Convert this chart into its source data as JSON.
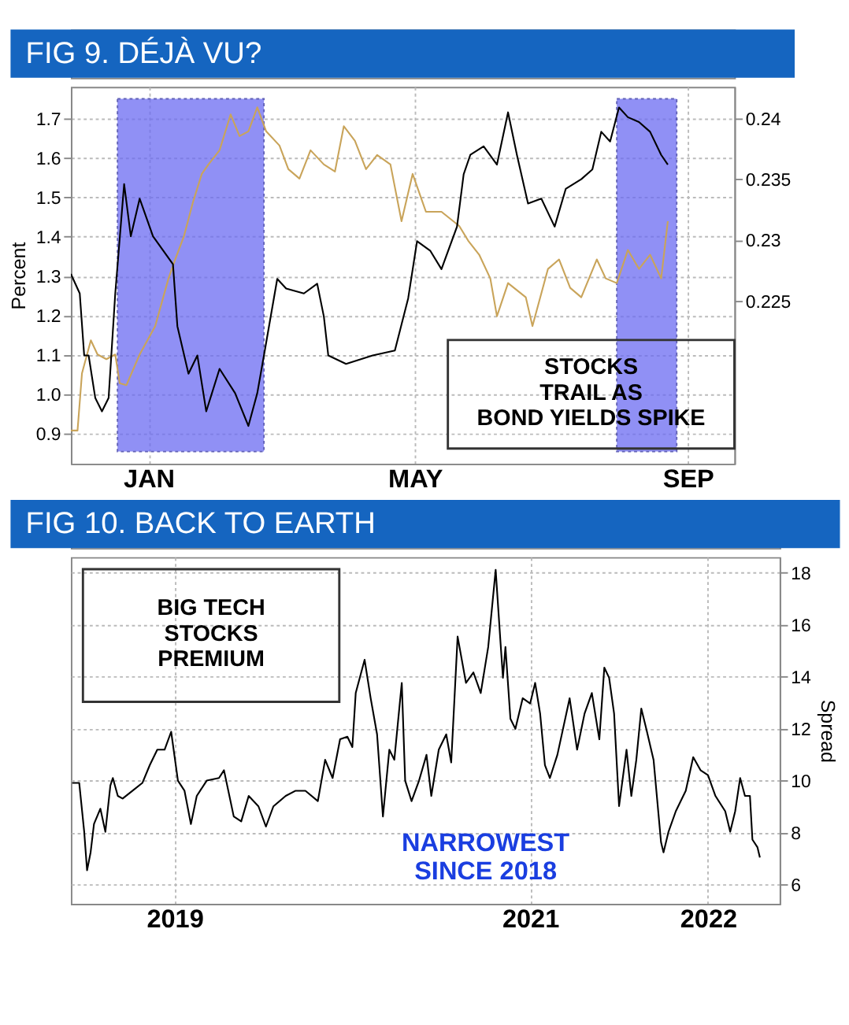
{
  "chart_data": [
    {
      "type": "line",
      "title": "FIG 9. DÉJÀ VU?",
      "ylabel": "Percent",
      "grid": true,
      "xlim": [
        "2020-11-27",
        "2021-09-22"
      ],
      "xticks": [
        {
          "value": "2021-01-01",
          "label": "JAN"
        },
        {
          "value": "2021-05-01",
          "label": "MAY"
        },
        {
          "value": "2021-09-01",
          "label": "SEP"
        }
      ],
      "ylim": [
        0.824,
        1.78
      ],
      "yticks": [
        0.9,
        {
          "value": 1,
          "label": "1.0"
        },
        1.1,
        1.2,
        1.3,
        1.4,
        1.5,
        1.6,
        1.7
      ],
      "y2lim": [
        0.2116,
        0.2426
      ],
      "y2ticks": [
        0.225,
        0.23,
        0.235,
        0.24
      ],
      "bands": [
        {
          "axis": "x",
          "from": "2020-12-18",
          "to": "2021-02-22",
          "color": "#6b6bf2"
        },
        {
          "axis": "x",
          "from": "2021-07-31",
          "to": "2021-08-27",
          "color": "#6b6bf2"
        }
      ],
      "series": [
        {
          "color": "#c9a45a",
          "x": [
            "2020-11-27",
            "2020-11-30",
            "2020-12-02",
            "2020-12-06",
            "2020-12-09",
            "2020-12-13",
            "2020-12-17",
            "2020-12-19",
            "2020-12-22",
            "2020-12-28",
            "2021-01-04",
            "2021-01-10",
            "2021-01-13",
            "2021-01-17",
            "2021-01-21",
            "2021-01-25",
            "2021-01-28",
            "2021-02-02",
            "2021-02-07",
            "2021-02-11",
            "2021-02-15",
            "2021-02-19",
            "2021-02-23",
            "2021-03-01",
            "2021-03-05",
            "2021-03-10",
            "2021-03-15",
            "2021-03-21",
            "2021-03-26",
            "2021-03-30",
            "2021-04-04",
            "2021-04-09",
            "2021-04-14",
            "2021-04-20",
            "2021-04-25",
            "2021-04-30",
            "2021-05-06",
            "2021-05-13",
            "2021-05-21",
            "2021-05-25",
            "2021-05-30",
            "2021-06-04",
            "2021-06-07",
            "2021-06-12",
            "2021-06-20",
            "2021-06-23",
            "2021-06-30",
            "2021-07-05",
            "2021-07-10",
            "2021-07-15",
            "2021-07-22",
            "2021-07-26",
            "2021-07-31",
            "2021-08-05",
            "2021-08-10",
            "2021-08-15",
            "2021-08-20",
            "2021-08-23"
          ],
          "values": [
            0.908,
            0.908,
            1.053,
            1.137,
            1.101,
            1.089,
            1.101,
            1.028,
            1.023,
            1.101,
            1.173,
            1.294,
            1.342,
            1.402,
            1.487,
            1.559,
            1.583,
            1.619,
            1.71,
            1.655,
            1.667,
            1.728,
            1.667,
            1.631,
            1.571,
            1.547,
            1.619,
            1.583,
            1.565,
            1.68,
            1.643,
            1.571,
            1.607,
            1.583,
            1.439,
            1.559,
            1.463,
            1.463,
            1.427,
            1.39,
            1.354,
            1.294,
            1.198,
            1.282,
            1.246,
            1.173,
            1.318,
            1.342,
            1.27,
            1.246,
            1.342,
            1.294,
            1.282,
            1.366,
            1.318,
            1.354,
            1.294,
            1.439
          ]
        },
        {
          "color": "#000000",
          "axis": "y2",
          "x": [
            "2020-11-27",
            "2020-12-01",
            "2020-12-03",
            "2020-12-05",
            "2020-12-08",
            "2020-12-11",
            "2020-12-14",
            "2020-12-17",
            "2020-12-21",
            "2020-12-24",
            "2020-12-28",
            "2021-01-03",
            "2021-01-12",
            "2021-01-14",
            "2021-01-19",
            "2021-01-23",
            "2021-01-27",
            "2021-02-02",
            "2021-02-09",
            "2021-02-15",
            "2021-02-19",
            "2021-02-22",
            "2021-02-28",
            "2021-03-04",
            "2021-03-12",
            "2021-03-18",
            "2021-03-21",
            "2021-03-23",
            "2021-03-31",
            "2021-04-12",
            "2021-04-22",
            "2021-04-28",
            "2021-05-02",
            "2021-05-08",
            "2021-05-13",
            "2021-05-20",
            "2021-05-23",
            "2021-05-26",
            "2021-06-01",
            "2021-06-07",
            "2021-06-12",
            "2021-06-16",
            "2021-06-21",
            "2021-06-27",
            "2021-07-03",
            "2021-07-08",
            "2021-07-15",
            "2021-07-20",
            "2021-07-24",
            "2021-07-28",
            "2021-08-01",
            "2021-08-05",
            "2021-08-10",
            "2021-08-15",
            "2021-08-20",
            "2021-08-23"
          ],
          "values": [
            0.2272,
            0.2256,
            0.2205,
            0.2205,
            0.217,
            0.2159,
            0.217,
            0.2256,
            0.2346,
            0.2303,
            0.2334,
            0.2303,
            0.228,
            0.2229,
            0.219,
            0.2205,
            0.2159,
            0.2194,
            0.2174,
            0.2147,
            0.2174,
            0.2205,
            0.2268,
            0.226,
            0.2256,
            0.2264,
            0.2237,
            0.2205,
            0.2198,
            0.2205,
            0.2209,
            0.2252,
            0.2299,
            0.2291,
            0.2276,
            0.2311,
            0.2354,
            0.237,
            0.2377,
            0.2362,
            0.2405,
            0.237,
            0.233,
            0.2334,
            0.2311,
            0.2342,
            0.235,
            0.2358,
            0.2389,
            0.2381,
            0.2409,
            0.2401,
            0.2397,
            0.2389,
            0.237,
            0.2362
          ]
        }
      ],
      "annotations": [
        "STOCKS\nTRAIL AS\nBOND YIELDS SPIKE"
      ]
    },
    {
      "type": "line",
      "title": "FIG 10. BACK TO EARTH",
      "y2label": "Spread",
      "grid": true,
      "xlim": [
        2018.417,
        2022.403
      ],
      "xticks": [
        2019,
        2021,
        2022
      ],
      "y2lim": [
        5.25,
        18.59
      ],
      "y2ticks": [
        6,
        8,
        10,
        12,
        14,
        16,
        18
      ],
      "series": [
        {
          "color": "#000000",
          "axis": "y2",
          "x": [
            2018.425,
            2018.464,
            2018.492,
            2018.508,
            2018.528,
            2018.547,
            2018.583,
            2018.611,
            2018.639,
            2018.653,
            2018.681,
            2018.708,
            2018.764,
            2018.819,
            2018.861,
            2018.903,
            2018.944,
            2018.981,
            2019.019,
            2019.056,
            2019.092,
            2019.125,
            2019.181,
            2019.25,
            2019.278,
            2019.333,
            2019.375,
            2019.417,
            2019.472,
            2019.514,
            2019.556,
            2019.625,
            2019.681,
            2019.736,
            2019.806,
            2019.847,
            2019.889,
            2019.931,
            2019.972,
            2020.0,
            2020.019,
            2020.069,
            2020.103,
            2020.139,
            2020.172,
            2020.208,
            2020.236,
            2020.278,
            2020.297,
            2020.333,
            2020.375,
            2020.417,
            2020.444,
            2020.486,
            2020.528,
            2020.556,
            2020.592,
            2020.639,
            2020.681,
            2020.722,
            2020.764,
            2020.806,
            2020.833,
            2020.847,
            2020.861,
            2020.889,
            2020.917,
            2020.958,
            2021.0,
            2021.028,
            2021.056,
            2021.083,
            2021.111,
            2021.153,
            2021.222,
            2021.264,
            2021.306,
            2021.347,
            2021.389,
            2021.417,
            2021.444,
            2021.472,
            2021.5,
            2021.542,
            2021.569,
            2021.597,
            2021.625,
            2021.653,
            2021.694,
            2021.736,
            2021.75,
            2021.778,
            2021.819,
            2021.875,
            2021.917,
            2021.958,
            2022.0,
            2022.042,
            2022.097,
            2022.125,
            2022.153,
            2022.181,
            2022.208,
            2022.236,
            2022.25,
            2022.278,
            2022.292
          ],
          "values": [
            9.9,
            9.9,
            8.02,
            6.54,
            7.23,
            8.32,
            8.91,
            8.02,
            9.8,
            10.09,
            9.4,
            9.3,
            9.6,
            9.9,
            10.59,
            11.18,
            11.18,
            11.87,
            9.99,
            9.6,
            8.32,
            9.4,
            9.99,
            10.09,
            10.39,
            8.61,
            8.42,
            9.4,
            9.0,
            8.22,
            9.0,
            9.4,
            9.6,
            9.6,
            9.2,
            10.79,
            10.09,
            11.58,
            11.68,
            11.28,
            13.36,
            14.64,
            13.16,
            11.77,
            8.61,
            11.18,
            10.79,
            13.75,
            9.99,
            9.2,
            9.99,
            10.98,
            9.4,
            11.18,
            11.77,
            10.69,
            15.53,
            13.75,
            14.15,
            13.36,
            15.13,
            18.1,
            15.33,
            13.95,
            15.13,
            12.37,
            11.98,
            13.16,
            12.96,
            13.75,
            12.57,
            10.59,
            10.09,
            10.98,
            13.16,
            11.18,
            12.57,
            13.36,
            11.58,
            14.34,
            13.95,
            12.57,
            9.01,
            11.18,
            9.4,
            10.79,
            12.76,
            11.98,
            10.79,
            7.62,
            7.23,
            8.02,
            8.81,
            9.6,
            10.89,
            10.39,
            10.2,
            9.4,
            8.81,
            8.02,
            8.81,
            10.09,
            9.4,
            9.4,
            7.72,
            7.43,
            7.03
          ]
        }
      ],
      "annotations": [
        "BIG TECH\nSTOCKS\nPREMIUM",
        "NARROWEST\nSINCE 2018"
      ]
    }
  ]
}
